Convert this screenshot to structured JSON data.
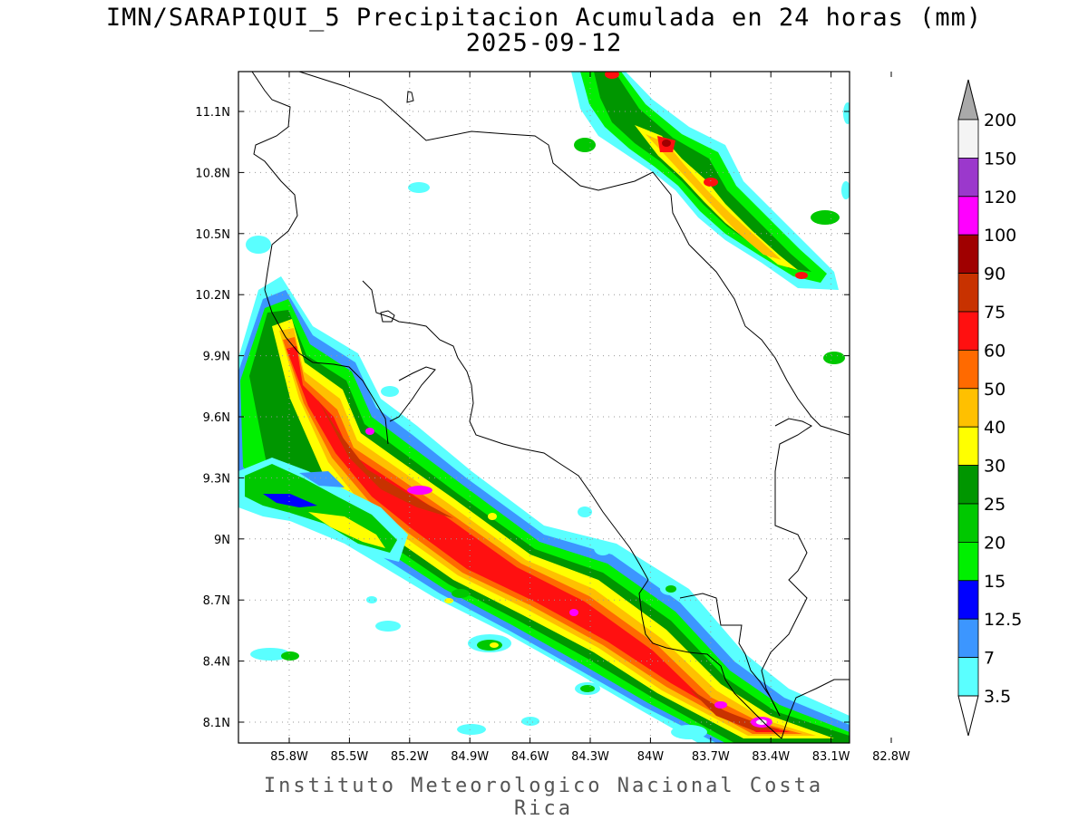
{
  "title": {
    "line1": "IMN/SARAPIQUI_5 Precipitacion Acumulada en 24 horas (mm)",
    "line2": "2025-09-12"
  },
  "footer": "Instituto Meteorologico Nacional Costa Rica",
  "map": {
    "lon_range": [
      -86.0,
      -83.0
    ],
    "lat_range": [
      8.0,
      11.3
    ],
    "lon_ticks": [
      -85.8,
      -85.5,
      -85.2,
      -84.9,
      -84.6,
      -84.3,
      -84.0,
      -83.7,
      -83.4,
      -83.1,
      -82.8
    ],
    "lon_labels": [
      "85.8W",
      "85.5W",
      "85.2W",
      "84.9W",
      "84.6W",
      "84.3W",
      "84W",
      "83.7W",
      "83.4W",
      "83.1W",
      "82.8W"
    ],
    "lat_ticks": [
      8.1,
      8.4,
      8.7,
      9.0,
      9.3,
      9.6,
      9.9,
      10.2,
      10.5,
      10.8,
      11.1
    ],
    "lat_labels": [
      "8.1N",
      "8.4N",
      "8.7N",
      "9N",
      "9.3N",
      "9.6N",
      "9.9N",
      "10.2N",
      "10.5N",
      "10.8N",
      "11.1N"
    ],
    "grid": true,
    "coastline_color": "#000000"
  },
  "legend": {
    "labels": [
      "200",
      "150",
      "120",
      "100",
      "90",
      "75",
      "60",
      "50",
      "40",
      "30",
      "25",
      "20",
      "15",
      "12.5",
      "7",
      "3.5"
    ],
    "colors": [
      "#f4f4f4",
      "#9b38cc",
      "#ff00ff",
      "#a00000",
      "#c83200",
      "#ff1010",
      "#ff6a00",
      "#ffc000",
      "#ffff00",
      "#009600",
      "#00c800",
      "#00f000",
      "#0000ff",
      "#3c96ff",
      "#5affff"
    ],
    "top_arrow_color": "#a9a9a9",
    "bottom_arrow_color": "#ffffff"
  }
}
